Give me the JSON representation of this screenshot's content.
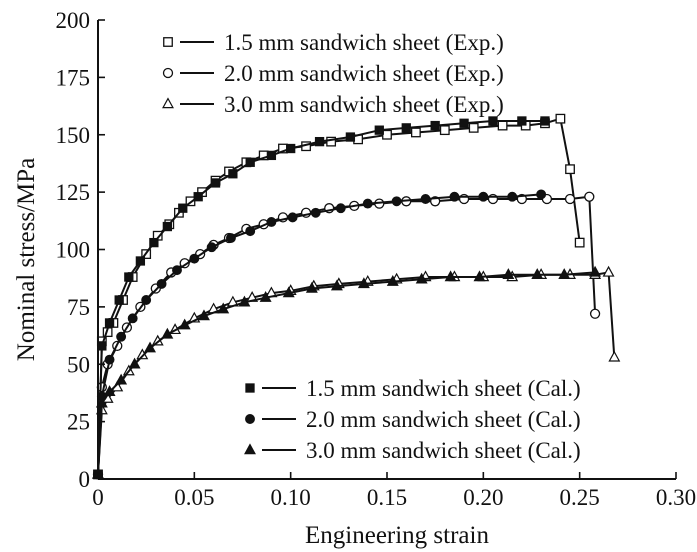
{
  "chart_data": {
    "type": "line",
    "xlabel": "Engineering strain",
    "ylabel": "Nominal stress/MPa",
    "xlim": [
      0,
      0.3
    ],
    "ylim": [
      0,
      200
    ],
    "x_ticks": [
      "0",
      "0.05",
      "0.10",
      "0.15",
      "0.20",
      "0.25",
      "0.30"
    ],
    "y_ticks": [
      "0",
      "25",
      "50",
      "75",
      "100",
      "125",
      "150",
      "175",
      "200"
    ],
    "grid": false,
    "legends": [
      {
        "placement": "top",
        "entries": [
          {
            "series": 0,
            "label": "1.5 mm sandwich sheet (Exp.)"
          },
          {
            "series": 1,
            "label": "2.0 mm sandwich sheet (Exp.)"
          },
          {
            "series": 2,
            "label": "3.0 mm sandwich sheet (Exp.)"
          }
        ]
      },
      {
        "placement": "bottom-right",
        "entries": [
          {
            "series": 3,
            "label": "1.5 mm sandwich sheet (Cal.)"
          },
          {
            "series": 4,
            "label": "2.0 mm sandwich sheet (Cal.)"
          },
          {
            "series": 5,
            "label": "3.0 mm sandwich sheet (Cal.)"
          }
        ]
      }
    ],
    "series": [
      {
        "name": "1.5 mm sandwich sheet (Exp.)",
        "marker": "open-square",
        "x": [
          0,
          0.002,
          0.005,
          0.008,
          0.013,
          0.018,
          0.025,
          0.031,
          0.037,
          0.042,
          0.048,
          0.054,
          0.061,
          0.068,
          0.077,
          0.086,
          0.096,
          0.108,
          0.121,
          0.135,
          0.15,
          0.165,
          0.18,
          0.195,
          0.21,
          0.222,
          0.232,
          0.24,
          0.245,
          0.25
        ],
        "y": [
          2,
          60,
          64,
          68,
          78,
          88,
          98,
          106,
          111,
          116,
          121,
          125,
          130,
          134,
          138,
          141,
          144,
          145,
          147,
          148,
          150,
          151,
          152,
          153,
          154,
          154,
          155,
          157,
          135,
          103
        ]
      },
      {
        "name": "2.0 mm sandwich sheet (Exp.)",
        "marker": "open-circle",
        "x": [
          0,
          0.002,
          0.005,
          0.01,
          0.015,
          0.022,
          0.03,
          0.038,
          0.045,
          0.053,
          0.06,
          0.068,
          0.077,
          0.086,
          0.096,
          0.108,
          0.12,
          0.133,
          0.146,
          0.16,
          0.175,
          0.19,
          0.205,
          0.22,
          0.233,
          0.245,
          0.255,
          0.258
        ],
        "y": [
          2,
          40,
          50,
          58,
          66,
          75,
          83,
          90,
          94,
          98,
          102,
          105,
          109,
          111,
          114,
          116,
          118,
          119,
          120,
          121,
          121,
          122,
          122,
          122,
          122,
          122,
          123,
          72
        ]
      },
      {
        "name": "3.0 mm sandwich sheet (Exp.)",
        "marker": "open-triangle",
        "x": [
          0,
          0.002,
          0.005,
          0.01,
          0.016,
          0.023,
          0.031,
          0.04,
          0.05,
          0.06,
          0.07,
          0.08,
          0.09,
          0.1,
          0.112,
          0.125,
          0.14,
          0.155,
          0.17,
          0.185,
          0.2,
          0.215,
          0.23,
          0.245,
          0.258,
          0.265,
          0.268
        ],
        "y": [
          2,
          30,
          35,
          40,
          47,
          54,
          60,
          65,
          70,
          74,
          77,
          79,
          81,
          82,
          84,
          85,
          86,
          87,
          88,
          88,
          88,
          88,
          89,
          89,
          89,
          90,
          53
        ]
      },
      {
        "name": "1.5 mm sandwich sheet (Cal.)",
        "marker": "filled-square",
        "x": [
          0,
          0.002,
          0.006,
          0.011,
          0.016,
          0.022,
          0.029,
          0.036,
          0.044,
          0.052,
          0.061,
          0.07,
          0.079,
          0.09,
          0.1,
          0.115,
          0.131,
          0.146,
          0.16,
          0.175,
          0.19,
          0.205,
          0.22,
          0.232
        ],
        "y": [
          2,
          58,
          68,
          78,
          88,
          95,
          103,
          110,
          118,
          123,
          129,
          133,
          138,
          141,
          144,
          147,
          149,
          152,
          153,
          154,
          155,
          156,
          156,
          156
        ]
      },
      {
        "name": "2.0 mm sandwich sheet (Cal.)",
        "marker": "filled-circle",
        "x": [
          0,
          0.002,
          0.006,
          0.012,
          0.018,
          0.025,
          0.033,
          0.041,
          0.05,
          0.059,
          0.069,
          0.079,
          0.09,
          0.101,
          0.113,
          0.126,
          0.14,
          0.155,
          0.17,
          0.185,
          0.2,
          0.215,
          0.23
        ],
        "y": [
          2,
          36,
          52,
          62,
          70,
          78,
          85,
          91,
          96,
          101,
          105,
          108,
          112,
          114,
          116,
          118,
          120,
          121,
          122,
          123,
          123,
          123,
          124
        ]
      },
      {
        "name": "3.0 mm sandwich sheet (Cal.)",
        "marker": "filled-triangle",
        "x": [
          0,
          0.002,
          0.006,
          0.012,
          0.019,
          0.027,
          0.036,
          0.045,
          0.055,
          0.065,
          0.076,
          0.087,
          0.099,
          0.111,
          0.124,
          0.138,
          0.153,
          0.168,
          0.183,
          0.198,
          0.213,
          0.228,
          0.242,
          0.258
        ],
        "y": [
          2,
          33,
          38,
          43,
          50,
          57,
          63,
          67,
          71,
          74,
          77,
          79,
          81,
          83,
          84,
          85,
          86,
          87,
          88,
          88,
          89,
          89,
          89,
          90
        ]
      }
    ]
  }
}
